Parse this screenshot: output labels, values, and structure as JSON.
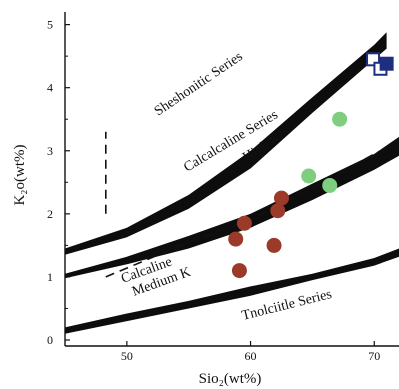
{
  "chart_data": {
    "type": "scatter",
    "xlabel": "Sio₂(wt%)",
    "ylabel": "K₂o(wt%)",
    "xlim": [
      45,
      72
    ],
    "ylim": [
      0,
      5.2
    ],
    "x_ticks": [
      50,
      60,
      70
    ],
    "y_ticks": [
      0,
      1,
      2,
      3,
      4,
      5
    ],
    "grid": false,
    "legend": "none",
    "field_labels": [
      "Sheshonitic Series",
      "Calcalcaline Series",
      "High K",
      "Calcaline",
      "Medium K",
      "Tnolciitle Series"
    ],
    "boundary_bands": [
      {
        "upper": [
          [
            45,
            1.45
          ],
          [
            50,
            1.78
          ],
          [
            55,
            2.3
          ],
          [
            60,
            3.0
          ],
          [
            65,
            3.85
          ],
          [
            70,
            4.68
          ],
          [
            71,
            4.88
          ]
        ],
        "lower": [
          [
            45,
            1.35
          ],
          [
            50,
            1.63
          ],
          [
            55,
            2.08
          ],
          [
            60,
            2.72
          ],
          [
            65,
            3.6
          ],
          [
            70,
            4.45
          ],
          [
            71,
            4.62
          ]
        ]
      },
      {
        "upper": [
          [
            45,
            1.05
          ],
          [
            50,
            1.32
          ],
          [
            55,
            1.65
          ],
          [
            60,
            2.0
          ],
          [
            65,
            2.48
          ],
          [
            70,
            2.95
          ],
          [
            72,
            3.22
          ]
        ],
        "lower": [
          [
            45,
            0.98
          ],
          [
            50,
            1.2
          ],
          [
            55,
            1.45
          ],
          [
            60,
            1.78
          ],
          [
            65,
            2.22
          ],
          [
            70,
            2.7
          ],
          [
            72,
            2.92
          ]
        ]
      },
      {
        "upper": [
          [
            45,
            0.2
          ],
          [
            50,
            0.42
          ],
          [
            55,
            0.62
          ],
          [
            60,
            0.85
          ],
          [
            65,
            1.05
          ],
          [
            70,
            1.3
          ],
          [
            72,
            1.45
          ]
        ],
        "lower": [
          [
            45,
            0.1
          ],
          [
            50,
            0.3
          ],
          [
            55,
            0.5
          ],
          [
            60,
            0.7
          ],
          [
            65,
            0.95
          ],
          [
            70,
            1.18
          ],
          [
            72,
            1.32
          ]
        ]
      }
    ],
    "dashed_lines": [
      [
        [
          48.3,
          1.0
        ],
        [
          55,
          1.55
        ],
        [
          60,
          1.9
        ],
        [
          65,
          2.4
        ],
        [
          70,
          2.95
        ],
        [
          71.5,
          3.1
        ]
      ],
      [
        [
          48.3,
          2.0
        ],
        [
          48.3,
          3.3
        ]
      ]
    ],
    "series": [
      {
        "color": "#9c3a2a",
        "marker": "circle",
        "points": [
          [
            58.8,
            1.6
          ],
          [
            59.5,
            1.85
          ],
          [
            59.1,
            1.1
          ],
          [
            61.9,
            1.5
          ],
          [
            62.2,
            2.05
          ],
          [
            62.5,
            2.25
          ]
        ]
      },
      {
        "color": "#7fce7f",
        "marker": "circle",
        "points": [
          [
            67.2,
            3.5
          ],
          [
            64.7,
            2.6
          ],
          [
            66.4,
            2.45
          ]
        ]
      },
      {
        "color": "#1f2f80",
        "marker": "square",
        "points": [
          [
            69.9,
            4.45
          ],
          [
            70.5,
            4.3
          ],
          [
            71.0,
            4.38
          ]
        ]
      }
    ]
  }
}
